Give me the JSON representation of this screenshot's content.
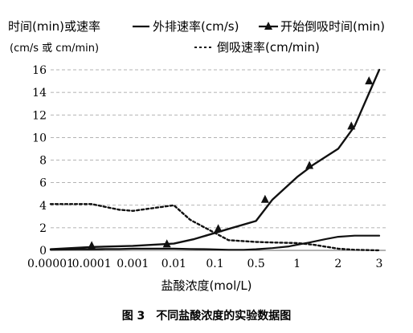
{
  "chart_data": {
    "type": "line",
    "ylabel_line1": "时间(min)或速率",
    "ylabel_line2": "(cm/s 或 cm/min)",
    "xlabel": "盐酸浓度(mol/L)",
    "caption": "图 3　不同盐酸浓度的实验数据图",
    "categories": [
      "0.00001",
      "0.0001",
      "0.001",
      "0.01",
      "0.1",
      "0.5",
      "1",
      "2",
      "3"
    ],
    "ylim": [
      0,
      16
    ],
    "yticks": [
      "0",
      "2",
      "4",
      "6",
      "8",
      "10",
      "12",
      "14",
      "16"
    ],
    "grid": "horizontal dashed",
    "legend": [
      {
        "name": "外排速率(cm/s)",
        "style": "solid"
      },
      {
        "name": "开始倒吸时间(min)",
        "style": "solid-triangle"
      },
      {
        "name": "倒吸速率(cm/min)",
        "style": "dotted"
      }
    ],
    "series": [
      {
        "name": "外排速率(cm/s)",
        "x": [
          0.0,
          0.33,
          0.67,
          1.0,
          1.33,
          1.67,
          2.0,
          2.33,
          2.67,
          3.0,
          3.4,
          3.85,
          4.33,
          4.7,
          5.0,
          5.4,
          5.8,
          6.0,
          6.3,
          6.7,
          7.0,
          7.4,
          7.8,
          8.0
        ],
        "y": [
          0.05,
          0.08,
          0.1,
          0.1,
          0.12,
          0.12,
          0.15,
          0.15,
          0.15,
          0.15,
          0.12,
          0.1,
          0.05,
          0.05,
          0.1,
          0.2,
          0.35,
          0.5,
          0.7,
          1.0,
          1.2,
          1.3,
          1.3,
          1.3
        ]
      },
      {
        "name": "开始倒吸时间(min)",
        "x": [
          0.0,
          1.0,
          2.0,
          3.0,
          3.5,
          4.33,
          5.0,
          5.4,
          6.0,
          6.4,
          7.0,
          7.4,
          8.0
        ],
        "y": [
          0.1,
          0.3,
          0.4,
          0.6,
          1.0,
          1.9,
          2.6,
          4.5,
          6.5,
          7.6,
          9.0,
          11.0,
          16.0
        ],
        "markers_x": [
          1.0,
          2.83,
          4.08,
          5.22,
          6.3,
          7.32,
          7.75
        ],
        "markers_y": [
          0.4,
          0.55,
          1.9,
          4.5,
          7.5,
          11.0,
          15.0
        ]
      },
      {
        "name": "倒吸速率(cm/min)",
        "x": [
          0.0,
          1.0,
          1.67,
          2.0,
          2.6,
          3.0,
          3.4,
          4.33,
          5.0,
          5.4,
          6.0,
          6.4,
          7.0,
          7.4,
          8.0
        ],
        "y": [
          4.1,
          4.1,
          3.6,
          3.5,
          3.8,
          4.0,
          2.7,
          0.9,
          0.75,
          0.7,
          0.65,
          0.5,
          0.15,
          0.05,
          0.0
        ]
      }
    ]
  }
}
